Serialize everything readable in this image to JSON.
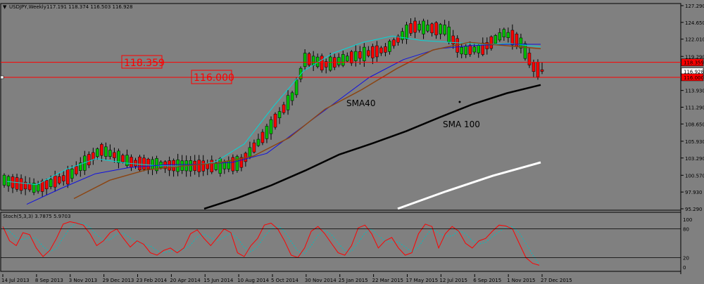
{
  "header": {
    "symbol_line": "USDJPY,Weekly",
    "ohlc": "117.191 118.374 116.503 116.928"
  },
  "stoch_header": "Stoch(5,3,3) 3.7875 5.9703",
  "annotations": {
    "level1": "118.359",
    "level2": "116.000",
    "sma40": "SMA40",
    "sma100": "SMA 100"
  },
  "price_axis": {
    "ticks": [
      "127.290",
      "124.650",
      "122.010",
      "119.290",
      "116.570",
      "113.930",
      "111.290",
      "108.650",
      "105.930",
      "103.290",
      "100.570",
      "97.930",
      "95.290"
    ],
    "badges": [
      "118.359",
      "116.928",
      "116.000"
    ]
  },
  "stoch_axis": {
    "ticks": [
      "100",
      "80",
      "20",
      "0"
    ]
  },
  "date_axis": {
    "labels": [
      "14 Jul 2013",
      "8 Sep 2013",
      "3 Nov 2013",
      "29 Dec 2013",
      "23 Feb 2014",
      "20 Apr 2014",
      "15 Jun 2014",
      "10 Aug 2014",
      "5 Oct 2014",
      "30 Nov 2014",
      "25 Jan 2015",
      "22 Mar 2015",
      "17 May 2015",
      "12 Jul 2015",
      "6 Sep 2015",
      "1 Nov 2015",
      "27 Dec 2015"
    ]
  },
  "colors": {
    "background": "#808080",
    "bull_candle": "#00c000",
    "bear_candle": "#ff0000",
    "level_line": "#ff0000",
    "sma_cyan": "#00d8d8",
    "sma_blue": "#1010e0",
    "sma40": "#8b4513",
    "sma100": "#000000",
    "sma200": "#ffffff",
    "stoch_main": "#ff0000",
    "stoch_signal": "#00c0c0"
  },
  "chart_data": {
    "type": "candlestick",
    "symbol": "USDJPY",
    "timeframe": "Weekly",
    "ylim": [
      95.29,
      127.29
    ],
    "levels": [
      118.359,
      116.0
    ],
    "last_ohlc": {
      "open": 117.191,
      "high": 118.374,
      "low": 116.503,
      "close": 116.928
    },
    "series": [
      {
        "name": "SMA40",
        "type": "line",
        "values_sampled": [
          96.9,
          99.8,
          101.4,
          102.0,
          102.5,
          103.6,
          106.5,
          111.0,
          114.0,
          117.4,
          120.3,
          121.5,
          121.0,
          120.5
        ]
      },
      {
        "name": "SMA 100",
        "type": "line",
        "values_sampled": [
          95.3,
          97.0,
          99.0,
          101.3,
          103.8,
          105.6,
          107.5,
          109.7,
          111.8,
          113.5,
          114.8
        ]
      },
      {
        "name": "SMA200",
        "type": "line",
        "values_sampled": [
          95.3,
          98.0,
          100.5,
          102.6
        ]
      }
    ],
    "stochastic": {
      "name": "Stoch(5,3,3)",
      "main": 3.7875,
      "signal": 5.9703,
      "levels": [
        80,
        20
      ],
      "ylim": [
        0,
        100
      ]
    }
  }
}
